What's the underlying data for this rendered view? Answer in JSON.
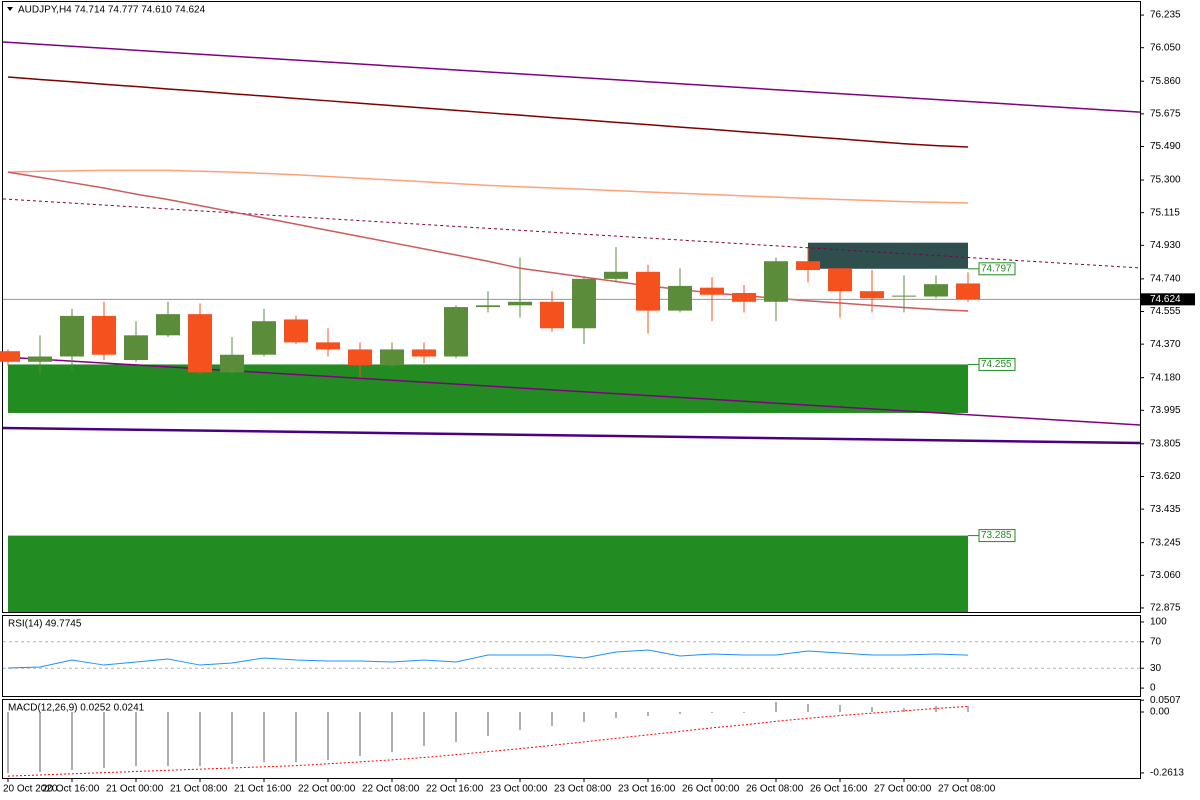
{
  "chart_data": [
    {
      "type": "candlestick",
      "title": "AUDJPY,H4  74.714 74.777 74.610 74.624",
      "categories": [
        "20 Oct 2020",
        null,
        "20 Oct 16:00",
        null,
        "21 Oct 00:00",
        null,
        "21 Oct 08:00",
        null,
        "21 Oct 16:00",
        null,
        "22 Oct 00:00",
        null,
        "22 Oct 08:00",
        null,
        "22 Oct 16:00",
        null,
        "23 Oct 00:00",
        null,
        "23 Oct 08:00",
        null,
        "23 Oct 16:00",
        null,
        "26 Oct 00:00",
        null,
        "26 Oct 08:00",
        null,
        "26 Oct 16:00",
        null,
        "27 Oct 00:00",
        null,
        "27 Oct 08:00"
      ],
      "open": [
        74.33,
        74.27,
        74.3,
        74.53,
        74.28,
        74.42,
        74.54,
        74.21,
        74.31,
        74.51,
        74.38,
        74.34,
        74.25,
        74.34,
        74.3,
        74.58,
        74.59,
        74.61,
        74.46,
        74.74,
        74.78,
        74.56,
        74.69,
        74.66,
        74.61,
        74.84,
        74.8,
        74.67,
        74.64,
        74.64,
        74.714
      ],
      "high": [
        74.34,
        74.42,
        74.57,
        74.61,
        74.5,
        74.61,
        74.6,
        74.41,
        74.57,
        74.53,
        74.46,
        74.38,
        74.38,
        74.38,
        74.59,
        74.67,
        74.86,
        74.67,
        74.75,
        74.92,
        74.82,
        74.8,
        74.75,
        74.705,
        74.86,
        74.915,
        74.8,
        74.79,
        74.76,
        74.76,
        74.777
      ],
      "low": [
        74.25,
        74.2,
        74.22,
        74.28,
        74.27,
        74.41,
        74.2,
        74.2,
        74.3,
        74.37,
        74.3,
        74.18,
        74.24,
        74.26,
        74.29,
        74.55,
        74.52,
        74.44,
        74.37,
        74.72,
        74.43,
        74.55,
        74.5,
        74.55,
        74.5,
        74.72,
        74.52,
        74.55,
        74.55,
        74.63,
        74.61
      ],
      "close": [
        74.27,
        74.3,
        74.53,
        74.31,
        74.42,
        74.54,
        74.21,
        74.31,
        74.5,
        74.38,
        74.34,
        74.25,
        74.34,
        74.3,
        74.58,
        74.59,
        74.61,
        74.46,
        74.74,
        74.78,
        74.56,
        74.7,
        74.65,
        74.61,
        74.84,
        74.79,
        74.67,
        74.63,
        74.645,
        74.71,
        74.624
      ],
      "up_color": "#5b8c3a",
      "down_color": "#f4511e",
      "ylim": [
        72.852,
        76.309
      ],
      "yticks": [
        {
          "value": 76.235,
          "label": "76.235"
        },
        {
          "value": 76.05,
          "label": "76.050"
        },
        {
          "value": 75.86,
          "label": "75.860"
        },
        {
          "value": 75.675,
          "label": "75.675"
        },
        {
          "value": 75.49,
          "label": "75.490"
        },
        {
          "value": 75.3,
          "label": "75.300"
        },
        {
          "value": 75.115,
          "label": "75.115"
        },
        {
          "value": 74.93,
          "label": "74.930"
        },
        {
          "value": 74.74,
          "label": "74.740"
        },
        {
          "value": 74.555,
          "label": "74.555"
        },
        {
          "value": 74.37,
          "label": "74.370"
        },
        {
          "value": 74.18,
          "label": "74.180"
        },
        {
          "value": 73.995,
          "label": "73.995"
        },
        {
          "value": 73.805,
          "label": "73.805"
        },
        {
          "value": 73.62,
          "label": "73.620"
        },
        {
          "value": 73.435,
          "label": "73.435"
        },
        {
          "value": 73.245,
          "label": "73.245"
        },
        {
          "value": 73.06,
          "label": "73.060"
        },
        {
          "value": 72.875,
          "label": "72.875"
        }
      ],
      "current_price": 74.624,
      "series": [
        {
          "color": "#800000",
          "values": [
            75.884,
            75.87,
            75.857,
            75.843,
            75.83,
            75.816,
            75.803,
            75.789,
            75.776,
            75.762,
            75.749,
            75.735,
            75.722,
            75.708,
            75.695,
            75.681,
            75.668,
            75.654,
            75.641,
            75.627,
            75.614,
            75.6,
            75.587,
            75.573,
            75.56,
            75.546,
            75.533,
            75.519,
            75.506,
            75.495,
            75.487
          ]
        },
        {
          "color": "#ffa07a",
          "values": [
            75.345,
            75.35,
            75.352,
            75.355,
            75.355,
            75.355,
            75.35,
            75.345,
            75.338,
            75.33,
            75.32,
            75.31,
            75.3,
            75.29,
            75.28,
            75.27,
            75.262,
            75.255,
            75.248,
            75.24,
            75.232,
            75.225,
            75.218,
            75.21,
            75.203,
            75.196,
            75.19,
            75.184,
            75.178,
            75.174,
            75.17
          ]
        },
        {
          "color": "#cd5c5c",
          "values": [
            75.345,
            75.315,
            75.285,
            75.255,
            75.22,
            75.19,
            75.155,
            75.12,
            75.085,
            75.05,
            75.015,
            74.98,
            74.945,
            74.91,
            74.875,
            74.84,
            74.8,
            74.775,
            74.75,
            74.725,
            74.7,
            74.68,
            74.66,
            74.645,
            74.63,
            74.615,
            74.603,
            74.59,
            74.578,
            74.566,
            74.558
          ]
        }
      ],
      "trendlines": [
        {
          "color": "#800080",
          "width": 1.5,
          "dash": false,
          "values": [
            76.082,
            75.685
          ]
        },
        {
          "color": "#800080",
          "width": 1.5,
          "dash": false,
          "values": [
            74.297,
            73.912
          ]
        },
        {
          "color": "#4b0082",
          "width": 2.5,
          "dash": false,
          "values": [
            73.895,
            73.81
          ]
        },
        {
          "color": "#800040",
          "width": 1,
          "dash": true,
          "values": [
            75.193,
            74.802
          ]
        }
      ],
      "zones": [
        {
          "color": "#2f4f4f",
          "from": 74.797,
          "to": 74.945,
          "start": 25,
          "end": 30
        },
        {
          "color": "#228b22",
          "from": 74.255,
          "to": 73.98,
          "start": 0,
          "end": 30
        },
        {
          "color": "#228b22",
          "from": 73.285,
          "to": 72.852,
          "start": 0,
          "end": 30
        }
      ]
    },
    {
      "type": "line",
      "title": "RSI(14) 49.7745",
      "color": "#1e90ff",
      "values": [
        30.3,
        31.8,
        42.4,
        34.8,
        39.4,
        43.9,
        34.8,
        37.9,
        45.5,
        42.4,
        40.9,
        40.9,
        39.4,
        42.4,
        39.4,
        50.0,
        50.0,
        50.0,
        45.5,
        54.5,
        57.6,
        48.5,
        51.5,
        50.0,
        50.0,
        56.1,
        53.0,
        50.0,
        50.0,
        51.5,
        49.7745
      ],
      "ylim": [
        -12,
        109
      ],
      "yticks": [
        100,
        70,
        30,
        0
      ],
      "levels": [
        70,
        30
      ]
    },
    {
      "type": "macd",
      "title": "MACD(12,26,9) 0.0252 0.0241",
      "hist_color": "#b0b0b0",
      "signal_color": "#ff0000",
      "values": [
        -0.262,
        -0.2575,
        -0.249,
        -0.24,
        -0.232,
        -0.232,
        -0.232,
        -0.223,
        -0.215,
        -0.215,
        -0.206,
        -0.189,
        -0.172,
        -0.146,
        -0.129,
        -0.103,
        -0.077,
        -0.06,
        -0.043,
        -0.026,
        -0.017,
        -0.009,
        -0.004,
        -0.004,
        0.043,
        0.034,
        0.03,
        0.021,
        0.017,
        0.026,
        0.0252
      ],
      "signal": [
        -0.275,
        -0.27,
        -0.265,
        -0.26,
        -0.255,
        -0.25,
        -0.245,
        -0.24,
        -0.235,
        -0.23,
        -0.222,
        -0.214,
        -0.205,
        -0.195,
        -0.183,
        -0.17,
        -0.157,
        -0.143,
        -0.128,
        -0.113,
        -0.098,
        -0.083,
        -0.068,
        -0.055,
        -0.04,
        -0.027,
        -0.015,
        -0.005,
        0.005,
        0.015,
        0.0241
      ],
      "ylim": [
        -0.283,
        0.0515
      ],
      "yticks": [
        0.0507,
        {
          "value": 0,
          "label": "0.00"
        },
        -0.2613
      ]
    }
  ]
}
